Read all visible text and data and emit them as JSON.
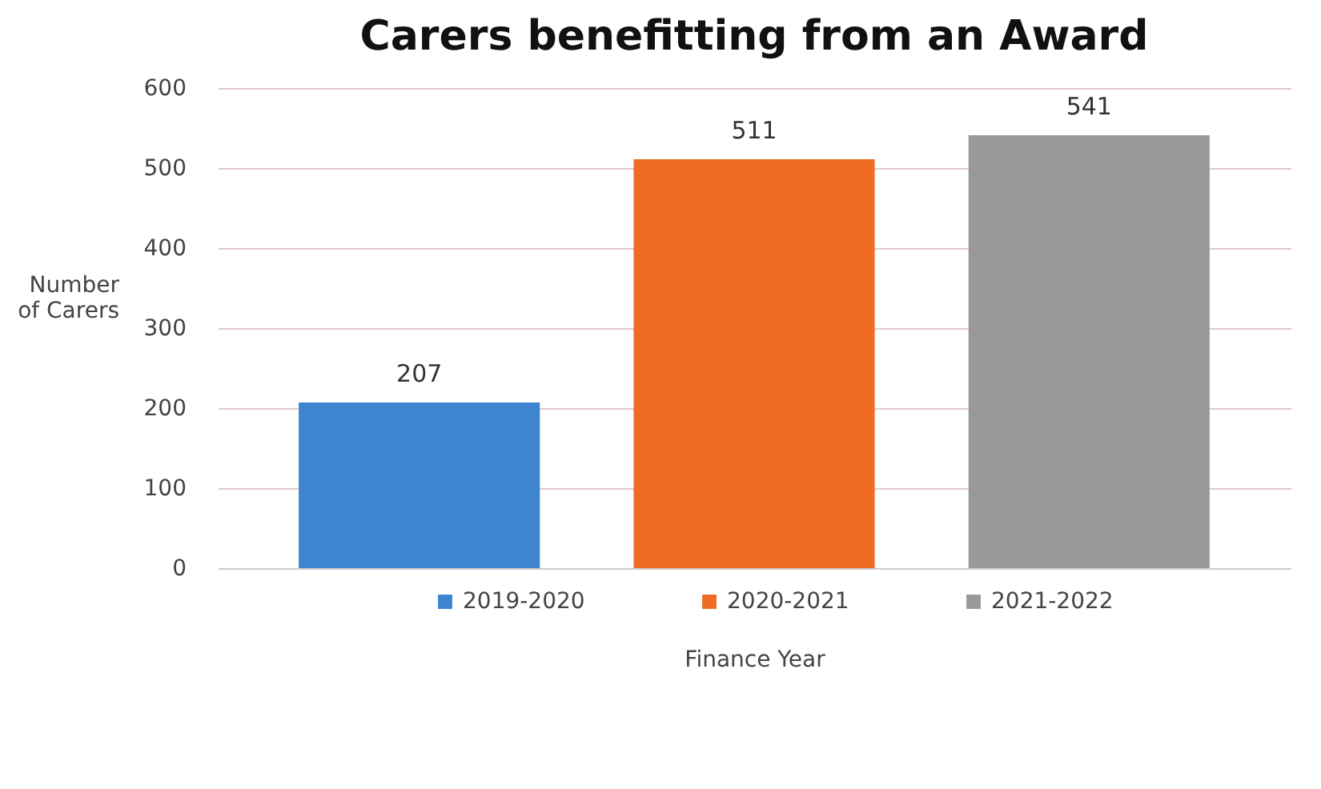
{
  "chart_data": {
    "type": "bar",
    "title": "Carers benefitting from an Award",
    "xlabel": "Finance Year",
    "ylabel": "Number of Carers",
    "categories": [
      null
    ],
    "series": [
      {
        "name": "2019-2020",
        "color": "#3d85cf",
        "values": [
          207
        ]
      },
      {
        "name": "2020-2021",
        "color": "#ef6c22",
        "values": [
          511
        ]
      },
      {
        "name": "2021-2022",
        "color": "#999999",
        "values": [
          541
        ]
      }
    ],
    "ylim": [
      0,
      600
    ],
    "yticks": [
      0,
      100,
      200,
      300,
      400,
      500,
      600
    ],
    "grid": "y",
    "legend": "bottom",
    "data_labels": true
  }
}
